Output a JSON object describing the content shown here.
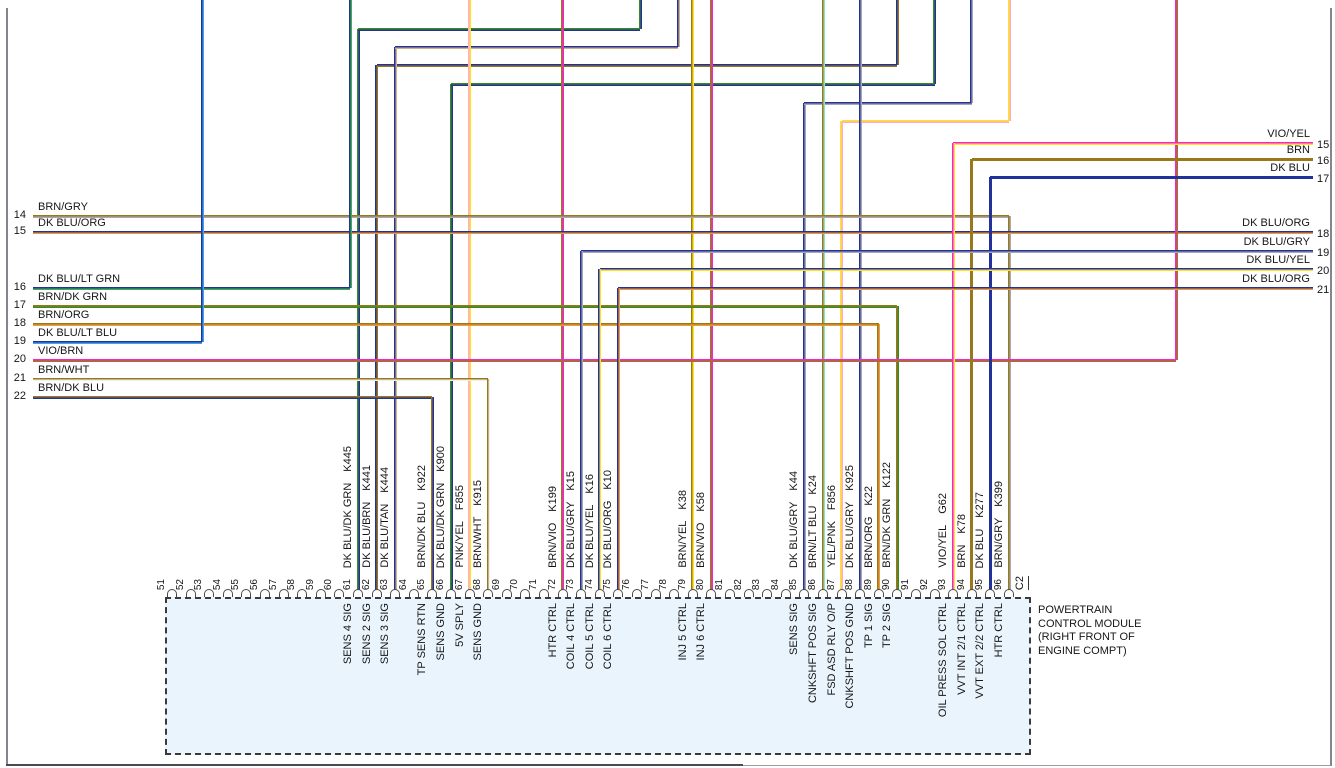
{
  "palette": {
    "navy": "#23319B",
    "brown": "#97791C",
    "dk_green": "#3A8A22",
    "lt_green": "#3FAE4F",
    "lt_blue": "#3FA3EC",
    "mint": "#8AE6C2",
    "tan": "#CDB284",
    "gray": "#A8A8B0",
    "orange": "#EE9A3C",
    "violet": "#FB1FD9",
    "yellow": "#FFE226",
    "pink": "#FFADC6",
    "white": "#F0F0F0",
    "box_fill": "#EAF4FC",
    "border_dark": "#4A4A52",
    "border_light": "#9B9BA3",
    "text": "#161616"
  },
  "left_connector": {
    "pins": [
      {
        "num": "14",
        "label": "BRN/GRY",
        "colors": [
          "brown",
          "gray"
        ]
      },
      {
        "num": "15",
        "label": "DK BLU/ORG",
        "colors": [
          "navy",
          "orange"
        ]
      },
      {
        "num": "16",
        "label": "DK BLU/LT GRN",
        "colors": [
          "navy",
          "lt_green"
        ]
      },
      {
        "num": "17",
        "label": "BRN/DK GRN",
        "colors": [
          "brown",
          "dk_green"
        ]
      },
      {
        "num": "18",
        "label": "BRN/ORG",
        "colors": [
          "brown",
          "orange"
        ]
      },
      {
        "num": "19",
        "label": "DK BLU/LT BLU",
        "colors": [
          "navy",
          "lt_blue"
        ]
      },
      {
        "num": "20",
        "label": "VIO/BRN",
        "colors": [
          "violet",
          "brown"
        ]
      },
      {
        "num": "21",
        "label": "BRN/WHT",
        "colors": [
          "brown",
          "white"
        ]
      },
      {
        "num": "22",
        "label": "BRN/DK BLU",
        "colors": [
          "brown",
          "navy"
        ]
      }
    ]
  },
  "right_connector": {
    "pins": [
      {
        "num": "15",
        "label": "VIO/YEL",
        "colors": [
          "violet",
          "yellow"
        ]
      },
      {
        "num": "16",
        "label": "BRN",
        "colors": [
          "brown",
          "brown"
        ]
      },
      {
        "num": "17",
        "label": "DK BLU",
        "colors": [
          "navy",
          "navy"
        ]
      },
      {
        "num": "18",
        "label": "DK BLU/ORG",
        "colors": [
          "navy",
          "orange"
        ]
      },
      {
        "num": "19",
        "label": "DK BLU/GRY",
        "colors": [
          "navy",
          "gray"
        ]
      },
      {
        "num": "20",
        "label": "DK BLU/YEL",
        "colors": [
          "navy",
          "yellow"
        ]
      },
      {
        "num": "21",
        "label": "DK BLU/ORG",
        "colors": [
          "navy",
          "orange"
        ]
      }
    ]
  },
  "pcm": {
    "name_lines": [
      "POWERTRAIN",
      "CONTROL MODULE",
      "(RIGHT FRONT OF",
      "ENGINE COMPT)"
    ],
    "connector_label": "C2",
    "pin_first": 51,
    "pin_last": 96,
    "wires": [
      {
        "pin": "61",
        "circuit": "K445",
        "label": "DK BLU/DK GRN",
        "function": "SENS 4 SIG",
        "colors": [
          "dk_green",
          "navy"
        ]
      },
      {
        "pin": "62",
        "circuit": "K441",
        "label": "DK BLU/BRN",
        "function": "SENS 2 SIG",
        "colors": [
          "navy",
          "brown"
        ]
      },
      {
        "pin": "63",
        "circuit": "K444",
        "label": "DK BLU/TAN",
        "function": "SENS 3 SIG",
        "colors": [
          "navy",
          "tan"
        ]
      },
      {
        "pin": "65",
        "circuit": "K922",
        "label": "BRN/DK BLU",
        "function": "TP SENS RTN",
        "colors": [
          "brown",
          "navy"
        ]
      },
      {
        "pin": "66",
        "circuit": "K900",
        "label": "DK BLU/DK GRN",
        "function": "SENS GND",
        "colors": [
          "dk_green",
          "navy"
        ]
      },
      {
        "pin": "67",
        "circuit": "F855",
        "label": "PNK/YEL",
        "function": "5V SPLY",
        "colors": [
          "pink",
          "yellow"
        ]
      },
      {
        "pin": "68",
        "circuit": "K915",
        "label": "BRN/WHT",
        "function": "SENS GND",
        "colors": [
          "brown",
          "white"
        ]
      },
      {
        "pin": "72",
        "circuit": "K199",
        "label": "BRN/VIO",
        "function": "HTR CTRL",
        "colors": [
          "brown",
          "violet"
        ]
      },
      {
        "pin": "73",
        "circuit": "K15",
        "label": "DK BLU/GRY",
        "function": "COIL 4 CTRL",
        "colors": [
          "navy",
          "gray"
        ]
      },
      {
        "pin": "74",
        "circuit": "K16",
        "label": "DK BLU/YEL",
        "function": "COIL 5 CTRL",
        "colors": [
          "navy",
          "yellow"
        ]
      },
      {
        "pin": "75",
        "circuit": "K10",
        "label": "DK BLU/ORG",
        "function": "COIL 6 CTRL",
        "colors": [
          "navy",
          "orange"
        ]
      },
      {
        "pin": "79",
        "circuit": "K38",
        "label": "BRN/YEL",
        "function": "INJ 5 CTRL",
        "colors": [
          "brown",
          "yellow"
        ]
      },
      {
        "pin": "80",
        "circuit": "K58",
        "label": "BRN/VIO",
        "function": "INJ 6 CTRL",
        "colors": [
          "brown",
          "violet"
        ]
      },
      {
        "pin": "85",
        "circuit": "K44",
        "label": "DK BLU/GRY",
        "function": "SENS SIG",
        "colors": [
          "navy",
          "gray"
        ]
      },
      {
        "pin": "86",
        "circuit": "K24",
        "label": "BRN/LT BLU",
        "function": "CNKSHFT POS SIG",
        "colors": [
          "brown",
          "mint"
        ]
      },
      {
        "pin": "87",
        "circuit": "F856",
        "label": "YEL/PNK",
        "function": "FSD ASD RLY O/P",
        "colors": [
          "yellow",
          "pink"
        ]
      },
      {
        "pin": "88",
        "circuit": "K925",
        "label": "DK BLU/GRY",
        "function": "CNKSHFT POS GND",
        "colors": [
          "navy",
          "gray"
        ]
      },
      {
        "pin": "89",
        "circuit": "K22",
        "label": "BRN/ORG",
        "function": "TP 1 SIG",
        "colors": [
          "brown",
          "orange"
        ]
      },
      {
        "pin": "90",
        "circuit": "K122",
        "label": "BRN/DK GRN",
        "function": "TP 2 SIG",
        "colors": [
          "brown",
          "dk_green"
        ]
      },
      {
        "pin": "93",
        "circuit": "G62",
        "label": "VIO/YEL",
        "function": "OIL PRESS SOL CTRL",
        "colors": [
          "violet",
          "yellow"
        ]
      },
      {
        "pin": "94",
        "circuit": "K78",
        "label": "BRN",
        "function": "VVT INT 2/1 CTRL",
        "colors": [
          "brown",
          "brown"
        ]
      },
      {
        "pin": "95",
        "circuit": "K277",
        "label": "DK BLU",
        "function": "VVT EXT 2/2 CTRL",
        "colors": [
          "navy",
          "navy"
        ]
      },
      {
        "pin": "96",
        "circuit": "K399",
        "label": "BRN/GRY",
        "function": "HTR CTRL",
        "colors": [
          "brown",
          "gray"
        ]
      }
    ]
  }
}
